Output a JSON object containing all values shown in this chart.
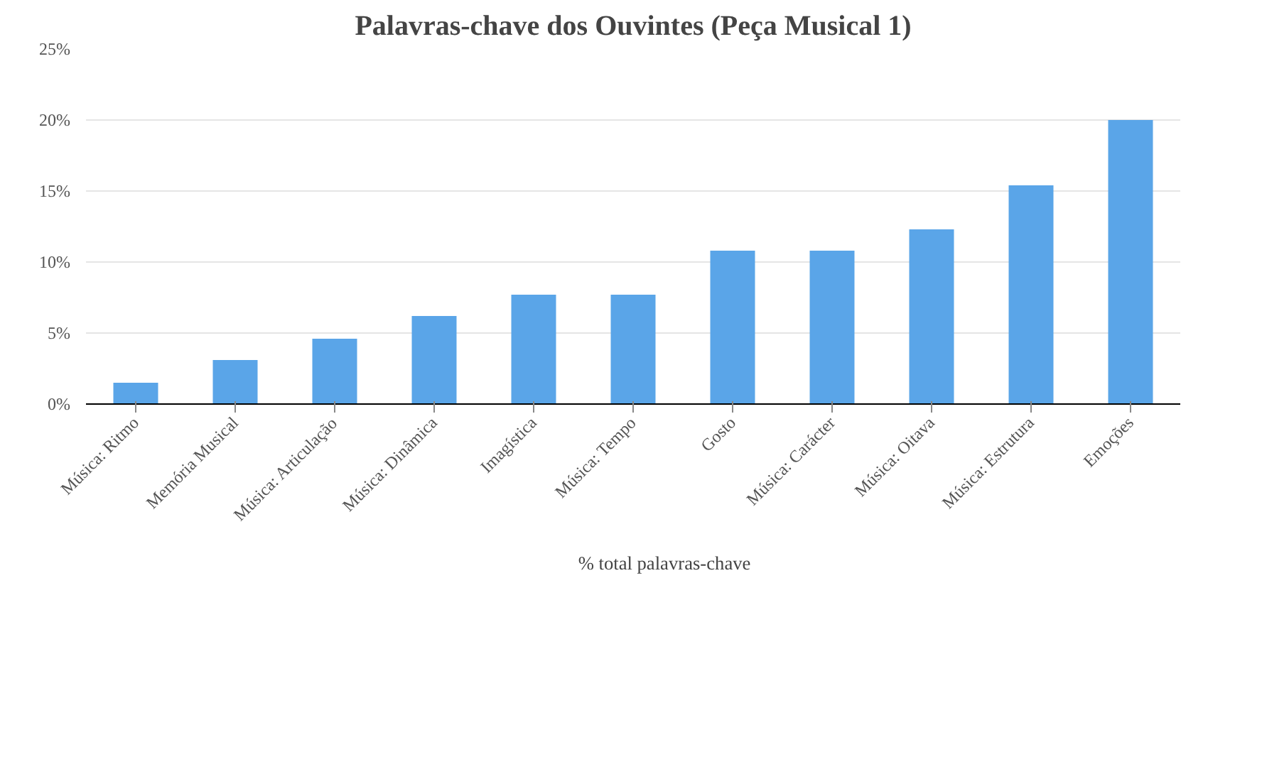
{
  "chart_data": {
    "type": "bar",
    "title": "Palavras-chave dos Ouvintes (Peça Musical 1)",
    "categories": [
      "Música: Ritmo",
      "Memória Musical",
      "Música: Articulação",
      "Música: Dinâmica",
      "Imagística",
      "Música: Tempo",
      "Gosto",
      "Música: Carácter",
      "Música: Oitava",
      "Música: Estrutura",
      "Emoções"
    ],
    "series": [
      {
        "name": "% total palavras-chave",
        "color": "#5aa5e8",
        "values": [
          1.5,
          3.1,
          4.6,
          6.2,
          7.7,
          7.7,
          10.8,
          10.8,
          12.3,
          15.4,
          20.0
        ]
      }
    ],
    "ylim": [
      0,
      25
    ],
    "yticks": [
      {
        "value": 0,
        "label": "0%"
      },
      {
        "value": 5,
        "label": "5%"
      },
      {
        "value": 10,
        "label": "10%"
      },
      {
        "value": 15,
        "label": "15%"
      },
      {
        "value": 20,
        "label": "20%"
      },
      {
        "value": 25,
        "label": "25%"
      }
    ],
    "grid": "y",
    "legend": "bottom"
  }
}
